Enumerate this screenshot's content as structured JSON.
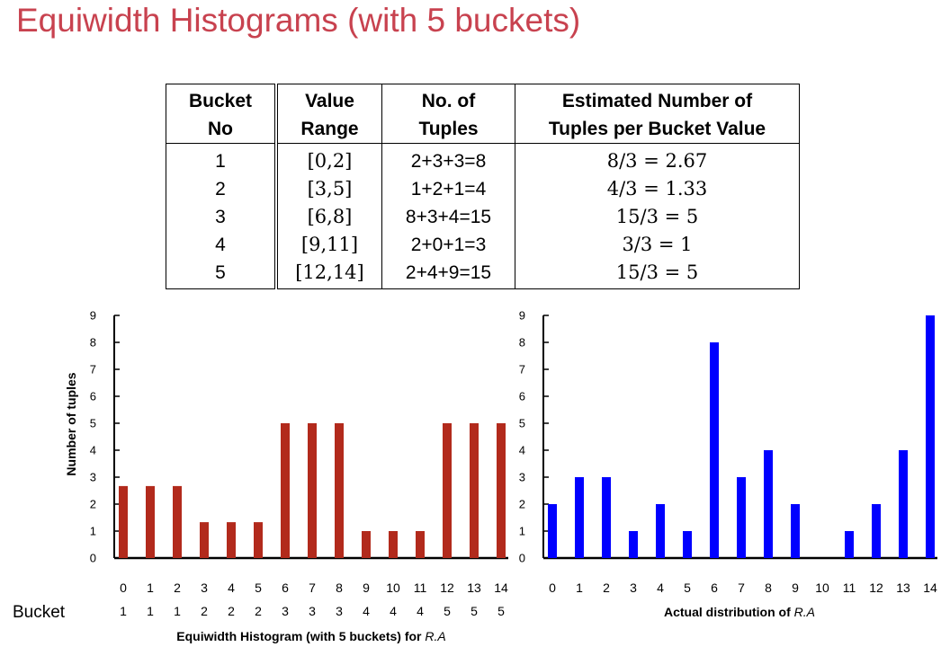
{
  "title": "Equiwidth Histograms (with 5 buckets)",
  "table": {
    "headers": [
      [
        "Bucket",
        "No"
      ],
      [
        "Value",
        "Range"
      ],
      [
        "No. of",
        "Tuples"
      ],
      [
        "Estimated Number of",
        "Tuples per Bucket Value"
      ]
    ],
    "rows": [
      [
        "1",
        "[0,2]",
        "2+3+3=8",
        "8/3 = 2.67"
      ],
      [
        "2",
        "[3,5]",
        "1+2+1=4",
        "4/3 = 1.33"
      ],
      [
        "3",
        "[6,8]",
        "8+3+4=15",
        "15/3 = 5"
      ],
      [
        "4",
        "[9,11]",
        "2+0+1=3",
        "3/3 = 1"
      ],
      [
        "5",
        "[12,14]",
        "2+4+9=15",
        "15/3 = 5"
      ]
    ]
  },
  "chart_data": [
    {
      "type": "bar",
      "title": "",
      "ylabel": "Number of tuples",
      "xlabel": "Equiwidth Histogram (with 5 buckets) for R.A",
      "xlabel_plain": "Equiwidth Histogram (with 5 buckets) for ",
      "xlabel_italic": "R.A",
      "categories": [
        "0",
        "1",
        "2",
        "3",
        "4",
        "5",
        "6",
        "7",
        "8",
        "9",
        "10",
        "11",
        "12",
        "13",
        "14"
      ],
      "values": [
        2.67,
        2.67,
        2.67,
        1.33,
        1.33,
        1.33,
        5,
        5,
        5,
        1,
        1,
        1,
        5,
        5,
        5
      ],
      "bucket_row_label": "Bucket",
      "bucket_labels": [
        "1",
        "1",
        "1",
        "2",
        "2",
        "2",
        "3",
        "3",
        "3",
        "4",
        "4",
        "4",
        "5",
        "5",
        "5"
      ],
      "ylim": [
        0,
        9
      ],
      "yticks": [
        "0",
        "1",
        "2",
        "3",
        "4",
        "5",
        "6",
        "7",
        "8",
        "9"
      ],
      "color": "#b22a1c",
      "grid": false
    },
    {
      "type": "bar",
      "title": "",
      "ylabel": "",
      "xlabel": "Actual distribution of R.A",
      "xlabel_plain": "Actual distribution of ",
      "xlabel_italic": "R.A",
      "categories": [
        "0",
        "1",
        "2",
        "3",
        "4",
        "5",
        "6",
        "7",
        "8",
        "9",
        "10",
        "11",
        "12",
        "13",
        "14"
      ],
      "values": [
        2,
        3,
        3,
        1,
        2,
        1,
        8,
        3,
        4,
        2,
        0,
        1,
        2,
        4,
        9
      ],
      "ylim": [
        0,
        9
      ],
      "yticks": [
        "0",
        "1",
        "2",
        "3",
        "4",
        "5",
        "6",
        "7",
        "8",
        "9"
      ],
      "color": "#0000ff",
      "grid": false
    }
  ]
}
